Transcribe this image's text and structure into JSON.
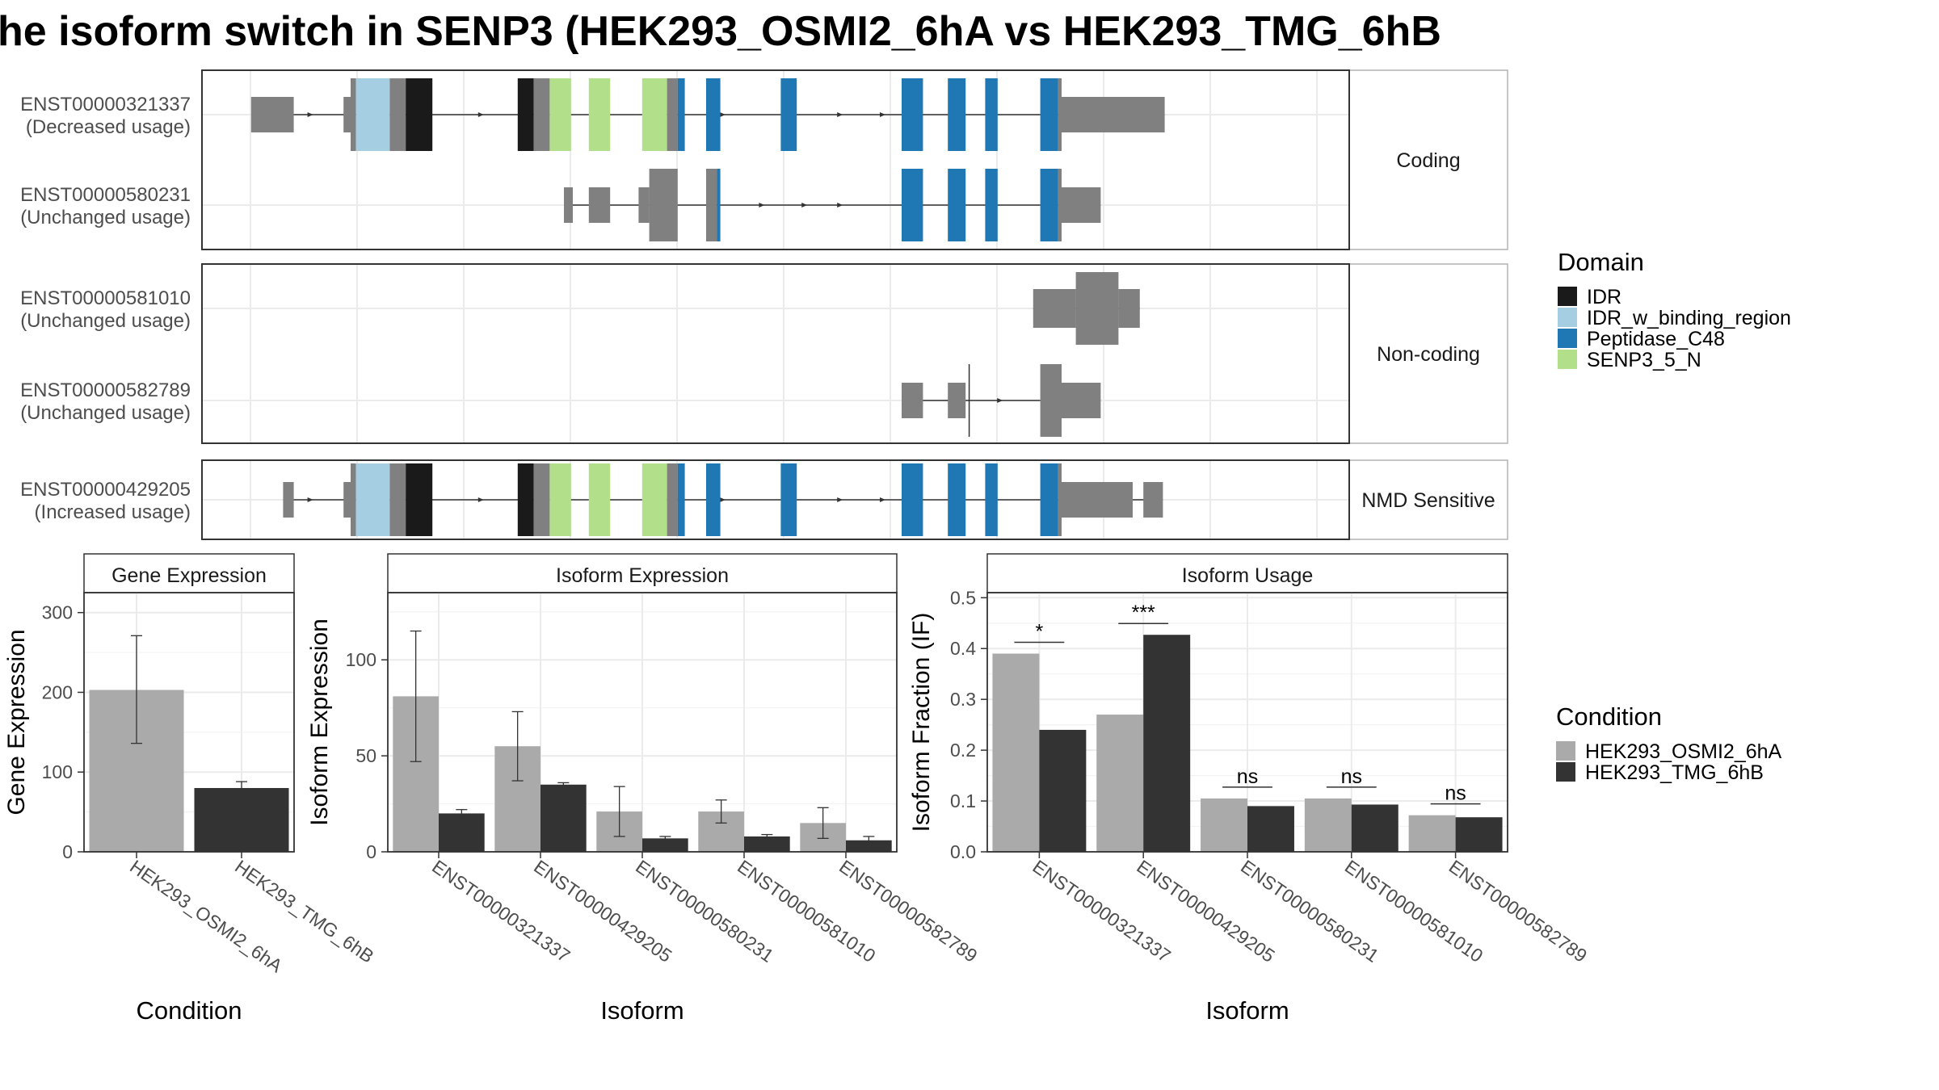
{
  "title": "he isoform switch in SENP3 (HEK293_OSMI2_6hA vs HEK293_TMG_6hB",
  "colors": {
    "utr": "#808080",
    "IDR": "#1a1a1a",
    "IDR_w_binding_region": "#a6cee3",
    "Peptidase_C48": "#1f78b4",
    "SENP3_5_N": "#b2df8a",
    "cond_a": "#aaaaaa",
    "cond_b": "#333333"
  },
  "domain_legend": {
    "title": "Domain",
    "items": [
      {
        "label": "IDR",
        "key": "IDR"
      },
      {
        "label": "IDR_w_binding_region",
        "key": "IDR_w_binding_region"
      },
      {
        "label": "Peptidase_C48",
        "key": "Peptidase_C48"
      },
      {
        "label": "SENP3_5_N",
        "key": "SENP3_5_N"
      }
    ]
  },
  "condition_legend": {
    "title": "Condition",
    "items": [
      {
        "label": "HEK293_OSMI2_6hA",
        "key": "cond_a"
      },
      {
        "label": "HEK293_TMG_6hB",
        "key": "cond_b"
      }
    ]
  },
  "structure_panels": [
    {
      "strip": "Coding",
      "transcripts": [
        {
          "id": "ENST00000321337",
          "usage": "(Decreased usage)",
          "coding": true,
          "exons": [
            [
              2,
              14,
              "utr"
            ],
            [
              28,
              30,
              "utr"
            ],
            [
              30,
              31.5,
              "cds"
            ],
            [
              31.5,
              41,
              "IDR_w_binding_region"
            ],
            [
              41,
              45.5,
              "cds"
            ],
            [
              45.5,
              53,
              "IDR"
            ],
            [
              77,
              81.5,
              "IDR"
            ],
            [
              81.5,
              86,
              "cds"
            ],
            [
              86,
              92,
              "SENP3_5_N"
            ],
            [
              97,
              103,
              "SENP3_5_N"
            ],
            [
              112,
              119,
              "SENP3_5_N"
            ],
            [
              119,
              122,
              "cds"
            ],
            [
              122,
              124,
              "Peptidase_C48"
            ],
            [
              130,
              134,
              "Peptidase_C48"
            ],
            [
              151,
              155.5,
              "Peptidase_C48"
            ],
            [
              185,
              191,
              "Peptidase_C48"
            ],
            [
              198,
              203,
              "Peptidase_C48"
            ],
            [
              208.5,
              212,
              "Peptidase_C48"
            ],
            [
              224,
              229,
              "Peptidase_C48"
            ],
            [
              229,
              230,
              "cds"
            ],
            [
              230,
              259,
              "utr"
            ]
          ],
          "arrows": [
            19,
            67,
            135,
            168,
            180
          ]
        },
        {
          "id": "ENST00000580231",
          "usage": "(Unchanged usage)",
          "coding": true,
          "exons": [
            [
              90,
              92.5,
              "utr"
            ],
            [
              97,
              103,
              "utr"
            ],
            [
              111,
              114,
              "utr"
            ],
            [
              114,
              122,
              "cds"
            ],
            [
              130,
              133,
              "cds"
            ],
            [
              133,
              134,
              "Peptidase_C48"
            ],
            [
              185,
              191,
              "Peptidase_C48"
            ],
            [
              198,
              203,
              "Peptidase_C48"
            ],
            [
              208.5,
              212,
              "Peptidase_C48"
            ],
            [
              224,
              229,
              "Peptidase_C48"
            ],
            [
              229,
              230,
              "cds"
            ],
            [
              230,
              241,
              "utr"
            ]
          ],
          "arrows": [
            146,
            158,
            168
          ]
        }
      ]
    },
    {
      "strip": "Non-coding",
      "transcripts": [
        {
          "id": "ENST00000581010",
          "usage": "(Unchanged usage)",
          "coding": false,
          "exons": [
            [
              222,
              234,
              "cds"
            ],
            [
              234,
              246,
              "cds"
            ],
            [
              246,
              252,
              "cds"
            ]
          ],
          "arrows": []
        },
        {
          "id": "ENST00000582789",
          "usage": "(Unchanged usage)",
          "coding": false,
          "exons": [
            [
              185,
              191,
              "cds"
            ],
            [
              198,
              203,
              "cds"
            ],
            [
              224,
              230,
              "cds"
            ],
            [
              230,
              241,
              "utr"
            ]
          ],
          "arrows": [
            213
          ]
        }
      ]
    },
    {
      "strip": "NMD Sensitive",
      "transcripts": [
        {
          "id": "ENST00000429205",
          "usage": "(Increased usage)",
          "coding": true,
          "exons": [
            [
              11,
              14,
              "utr"
            ],
            [
              28,
              30,
              "utr"
            ],
            [
              30,
              31.5,
              "cds"
            ],
            [
              31.5,
              41,
              "IDR_w_binding_region"
            ],
            [
              41,
              45.5,
              "cds"
            ],
            [
              45.5,
              53,
              "IDR"
            ],
            [
              77,
              81.5,
              "IDR"
            ],
            [
              81.5,
              86,
              "cds"
            ],
            [
              86,
              92,
              "SENP3_5_N"
            ],
            [
              97,
              103,
              "SENP3_5_N"
            ],
            [
              112,
              119,
              "SENP3_5_N"
            ],
            [
              119,
              122,
              "cds"
            ],
            [
              122,
              124,
              "Peptidase_C48"
            ],
            [
              130,
              134,
              "Peptidase_C48"
            ],
            [
              151,
              155.5,
              "Peptidase_C48"
            ],
            [
              185,
              191,
              "Peptidase_C48"
            ],
            [
              198,
              203,
              "Peptidase_C48"
            ],
            [
              208.5,
              212,
              "Peptidase_C48"
            ],
            [
              224,
              229,
              "Peptidase_C48"
            ],
            [
              229,
              230,
              "cds"
            ],
            [
              230,
              250,
              "utr"
            ],
            [
              253,
              258.5,
              "utr"
            ]
          ],
          "arrows": [
            19,
            67,
            135,
            168,
            180
          ]
        }
      ]
    }
  ],
  "chart_data": [
    {
      "type": "bar",
      "title": "Gene Expression",
      "xlabel": "Condition",
      "ylabel": "Gene Expression",
      "ylim": [
        0,
        325
      ],
      "yticks": [
        0,
        100,
        200,
        300
      ],
      "grid": true,
      "categories": [
        "HEK293_OSMI2_6hA",
        "HEK293_TMG_6hB"
      ],
      "series": [
        {
          "name": "HEK293_OSMI2_6hA",
          "values": [
            203,
            null
          ],
          "err_low": [
            136,
            null
          ],
          "err_high": [
            271,
            null
          ]
        },
        {
          "name": "HEK293_TMG_6hB",
          "values": [
            null,
            80
          ],
          "err_low": [
            null,
            74
          ],
          "err_high": [
            null,
            88
          ]
        }
      ]
    },
    {
      "type": "bar",
      "title": "Isoform Expression",
      "xlabel": "Isoform",
      "ylabel": "Isoform Expression",
      "ylim": [
        0,
        135
      ],
      "yticks": [
        0,
        50,
        100
      ],
      "grid": true,
      "categories": [
        "ENST00000321337",
        "ENST00000429205",
        "ENST00000580231",
        "ENST00000581010",
        "ENST00000582789"
      ],
      "series": [
        {
          "name": "HEK293_OSMI2_6hA",
          "values": [
            81,
            55,
            21,
            21,
            15
          ],
          "err_low": [
            47,
            37,
            8,
            15,
            7
          ],
          "err_high": [
            115,
            73,
            34,
            27,
            23
          ]
        },
        {
          "name": "HEK293_TMG_6hB",
          "values": [
            20,
            35,
            7,
            8,
            6
          ],
          "err_low": [
            18,
            34,
            6,
            7,
            4
          ],
          "err_high": [
            22,
            36,
            8,
            9,
            8
          ]
        }
      ]
    },
    {
      "type": "bar",
      "title": "Isoform Usage",
      "xlabel": "Isoform",
      "ylabel": "Isoform Fraction (IF)",
      "ylim": [
        0,
        0.51
      ],
      "yticks": [
        0.0,
        0.1,
        0.2,
        0.3,
        0.4,
        0.5
      ],
      "grid": true,
      "categories": [
        "ENST00000321337",
        "ENST00000429205",
        "ENST00000580231",
        "ENST00000581010",
        "ENST00000582789"
      ],
      "series": [
        {
          "name": "HEK293_OSMI2_6hA",
          "values": [
            0.39,
            0.27,
            0.105,
            0.105,
            0.072
          ]
        },
        {
          "name": "HEK293_TMG_6hB",
          "values": [
            0.24,
            0.427,
            0.09,
            0.093,
            0.068
          ]
        }
      ],
      "significance": [
        "*",
        "***",
        "ns",
        "ns",
        "ns"
      ]
    }
  ]
}
